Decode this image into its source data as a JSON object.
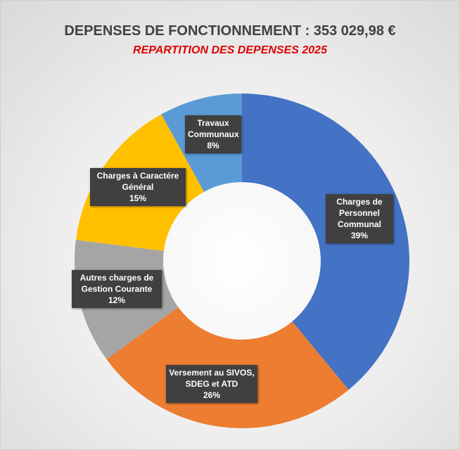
{
  "chart_data": {
    "type": "donut",
    "title": "DEPENSES DE FONCTIONNEMENT : 353 029,98 €",
    "subtitle": "REPARTITION DES DEPENSES 2025",
    "categories": [
      "Charges de Personnel Communal",
      "Versement au SIVOS, SDEG et ATD",
      "Autres charges de Gestion Courante",
      "Charges à Caractére Général",
      "Travaux Communaux"
    ],
    "values": [
      39,
      26,
      12,
      15,
      8
    ],
    "value_labels": [
      "39%",
      "26%",
      "12%",
      "15%",
      "8%"
    ],
    "colors": [
      "#4472c4",
      "#ed7d31",
      "#a5a5a5",
      "#ffc000",
      "#5b9bd5"
    ]
  }
}
